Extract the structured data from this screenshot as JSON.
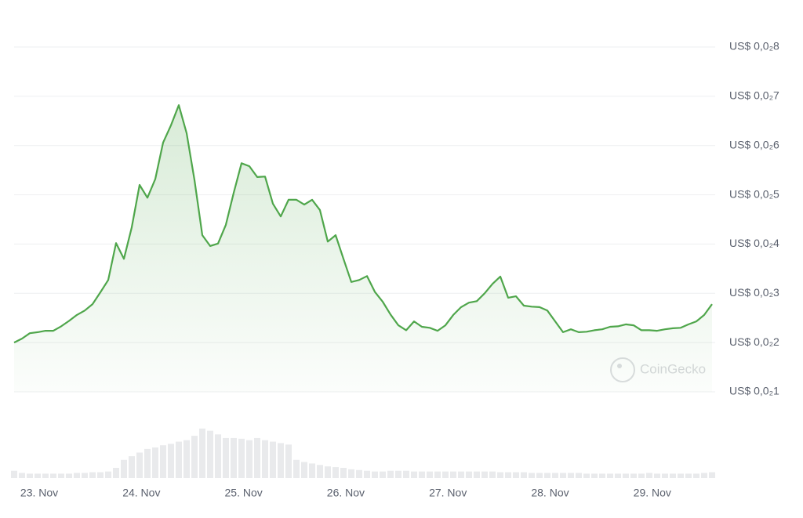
{
  "chart_data": {
    "type": "line",
    "watermark": "CoinGecko",
    "color": "#4fa64b",
    "volume_color": "#e9eaec",
    "grid": true,
    "xlim": [
      -0.246,
      6.585
    ],
    "xticks": [
      {
        "value": 0,
        "label": "23. Nov"
      },
      {
        "value": 1,
        "label": "24. Nov"
      },
      {
        "value": 2,
        "label": "25. Nov"
      },
      {
        "value": 3,
        "label": "26. Nov"
      },
      {
        "value": 4,
        "label": "27. Nov"
      },
      {
        "value": 5,
        "label": "28. Nov"
      },
      {
        "value": 6,
        "label": "29. Nov"
      }
    ],
    "ylim": [
      0.001,
      0.008
    ],
    "yticks": [
      {
        "value": 0.008,
        "label": "US$ 0,0₂8"
      },
      {
        "value": 0.007,
        "label": "US$ 0,0₂7"
      },
      {
        "value": 0.006,
        "label": "US$ 0,0₂6"
      },
      {
        "value": 0.005,
        "label": "US$ 0,0₂5"
      },
      {
        "value": 0.004,
        "label": "US$ 0,0₂4"
      },
      {
        "value": 0.003,
        "label": "US$ 0,0₂3"
      },
      {
        "value": 0.002,
        "label": "US$ 0,0₂2"
      },
      {
        "value": 0.001,
        "label": "US$ 0,0₂1"
      }
    ],
    "values": [
      0.002,
      0.00208,
      0.00219,
      0.00221,
      0.00224,
      0.00224,
      0.00233,
      0.00244,
      0.00256,
      0.00265,
      0.00278,
      0.00302,
      0.00327,
      0.00402,
      0.0037,
      0.00434,
      0.0052,
      0.00494,
      0.00532,
      0.00606,
      0.00641,
      0.00682,
      0.00625,
      0.0053,
      0.00418,
      0.00396,
      0.00401,
      0.00439,
      0.00504,
      0.00564,
      0.00558,
      0.00536,
      0.00537,
      0.00482,
      0.00456,
      0.0049,
      0.0049,
      0.0048,
      0.0049,
      0.00469,
      0.00405,
      0.00418,
      0.0037,
      0.00323,
      0.00327,
      0.00335,
      0.00303,
      0.00283,
      0.00257,
      0.00235,
      0.00225,
      0.00243,
      0.00232,
      0.0023,
      0.00224,
      0.00235,
      0.00256,
      0.00272,
      0.00281,
      0.00284,
      0.003,
      0.00319,
      0.00334,
      0.00291,
      0.00294,
      0.00275,
      0.00273,
      0.00272,
      0.00265,
      0.00243,
      0.00221,
      0.00227,
      0.00221,
      0.00222,
      0.00225,
      0.00227,
      0.00232,
      0.00233,
      0.00237,
      0.00235,
      0.00225,
      0.00225,
      0.00224,
      0.00227,
      0.00229,
      0.0023,
      0.00237,
      0.00243,
      0.00256,
      0.00278
    ],
    "volume_lim": [
      0,
      70
    ],
    "volumes": [
      10,
      7,
      6,
      6,
      6,
      6,
      6,
      6,
      7,
      7,
      8,
      8,
      9,
      14,
      25,
      30,
      35,
      40,
      42,
      45,
      47,
      50,
      52,
      58,
      68,
      65,
      60,
      55,
      55,
      54,
      52,
      55,
      52,
      50,
      48,
      46,
      25,
      22,
      20,
      18,
      16,
      15,
      14,
      12,
      11,
      10,
      9,
      9,
      10,
      10,
      10,
      9,
      9,
      9,
      9,
      9,
      9,
      9,
      9,
      9,
      9,
      9,
      8,
      8,
      8,
      8,
      7,
      7,
      7,
      7,
      7,
      7,
      7,
      6,
      6,
      6,
      6,
      6,
      6,
      6,
      6,
      7,
      6,
      6,
      6,
      6,
      6,
      6,
      7,
      8
    ]
  }
}
